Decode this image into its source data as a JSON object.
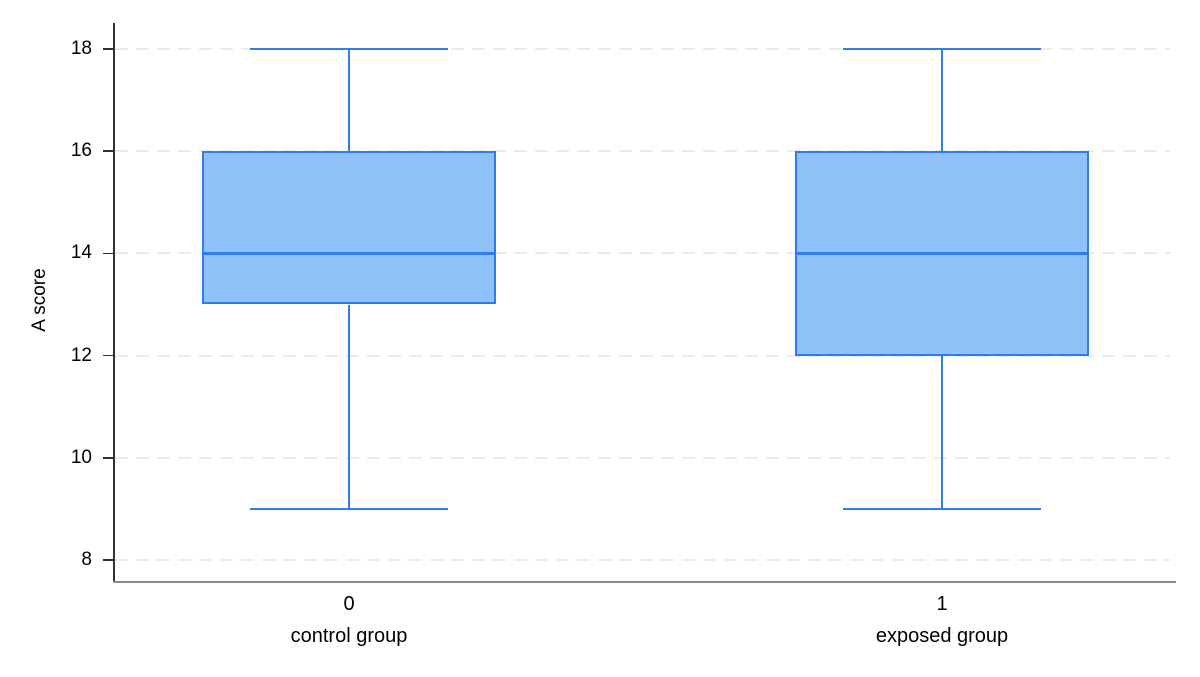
{
  "chart_data": {
    "type": "box",
    "title": "",
    "xlabel": "",
    "ylabel": "A score",
    "y_ticks": [
      8,
      10,
      12,
      14,
      16,
      18
    ],
    "ylim": [
      7.5,
      18.5
    ],
    "grid": "horizontal-dashed",
    "legend": "none",
    "colors": {
      "box_fill": "#8dc1f8",
      "box_stroke": "#2f7ded",
      "gridline": "#ebebeb",
      "y_axis_line": "#303030",
      "x_axis_line": "#8a8a8a",
      "text": "#000000"
    },
    "groups": [
      {
        "x_value": "0",
        "label": "control group",
        "whisker_low": 9,
        "q1": 13,
        "median": 14,
        "q3": 16,
        "whisker_high": 18
      },
      {
        "x_value": "1",
        "label": "exposed group",
        "whisker_low": 9,
        "q1": 12,
        "median": 14,
        "q3": 16,
        "whisker_high": 18
      }
    ]
  }
}
